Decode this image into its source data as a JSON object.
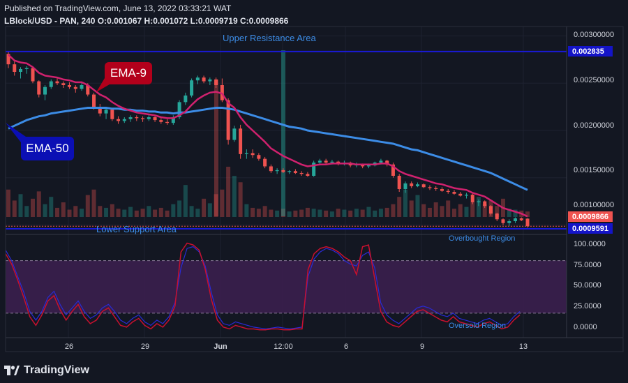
{
  "header": {
    "published": "Published on TradingView.com, June 13, 2022 03:33:21 WAT",
    "symbol_line": "LBlock/USD - PAN, 240 O:0.001067 H:0.001072 L:0.0009719 C:0.0009866"
  },
  "brand": {
    "name": "TradingView",
    "logo_icon": "tradingview-logo-icon"
  },
  "annotations": {
    "ema9_label": "EMA-9",
    "ema50_label": "EMA-50",
    "upper_zone": "Upper Resistance Area",
    "lower_zone": "Lower Support Area",
    "overbought": "Overbought Region",
    "oversold": "Oversold Region"
  },
  "price_tags": {
    "resistance": "0.002835",
    "last_close": "0.0009866",
    "support": "0.0009591"
  },
  "colors": {
    "background": "#131722",
    "bull": "#26a69a",
    "bear": "#ef5350",
    "ema9": "#d0216e",
    "ema50": "#3c8ce6",
    "level_line": "#1a1ad6",
    "osc_band": "#3b1f4e"
  },
  "chart_data": [
    {
      "type": "candlestick",
      "title": "LBlock/USD - PAN, 240",
      "y_ticks": [
        "0.00300000",
        "0.00250000",
        "0.00200000",
        "0.00150000",
        "0.00100000"
      ],
      "x_ticks": [
        "26",
        "29",
        "Jun",
        "12:00",
        "6",
        "9",
        "13"
      ],
      "ylim": [
        0.0009,
        0.0031
      ],
      "levels": {
        "upper_resistance": 0.002835,
        "lower_support": 0.0009591,
        "last_close": 0.0009866
      },
      "ohlc": [
        [
          0.00281,
          0.00283,
          0.00266,
          0.0027
        ],
        [
          0.0027,
          0.00273,
          0.00258,
          0.00262
        ],
        [
          0.00262,
          0.00267,
          0.00255,
          0.00265
        ],
        [
          0.00265,
          0.00268,
          0.0026,
          0.00266
        ],
        [
          0.00266,
          0.00267,
          0.0025,
          0.00252
        ],
        [
          0.00252,
          0.00253,
          0.00235,
          0.00238
        ],
        [
          0.00238,
          0.00248,
          0.00232,
          0.00246
        ],
        [
          0.00246,
          0.00254,
          0.00244,
          0.00252
        ],
        [
          0.00252,
          0.00255,
          0.00248,
          0.0025
        ],
        [
          0.0025,
          0.00252,
          0.00245,
          0.00248
        ],
        [
          0.00248,
          0.00251,
          0.00244,
          0.00246
        ],
        [
          0.00246,
          0.00248,
          0.0024,
          0.00244
        ],
        [
          0.00244,
          0.0025,
          0.00242,
          0.00248
        ],
        [
          0.00248,
          0.0025,
          0.00236,
          0.00238
        ],
        [
          0.00238,
          0.0024,
          0.00222,
          0.00225
        ],
        [
          0.00225,
          0.00228,
          0.00215,
          0.00218
        ],
        [
          0.00218,
          0.00225,
          0.00212,
          0.00222
        ],
        [
          0.00222,
          0.00224,
          0.0021,
          0.00212
        ],
        [
          0.00212,
          0.00215,
          0.00207,
          0.0021
        ],
        [
          0.0021,
          0.00214,
          0.00208,
          0.00212
        ],
        [
          0.00212,
          0.00216,
          0.00209,
          0.00214
        ],
        [
          0.00214,
          0.00216,
          0.0021,
          0.00213
        ],
        [
          0.00213,
          0.00215,
          0.00209,
          0.00212
        ],
        [
          0.00212,
          0.00216,
          0.0021,
          0.00214
        ],
        [
          0.00214,
          0.00215,
          0.00209,
          0.00211
        ],
        [
          0.00211,
          0.00213,
          0.00207,
          0.00209
        ],
        [
          0.00209,
          0.00212,
          0.00206,
          0.00208
        ],
        [
          0.00208,
          0.00216,
          0.00206,
          0.00214
        ],
        [
          0.00214,
          0.00232,
          0.00212,
          0.0023
        ],
        [
          0.0023,
          0.0024,
          0.00227,
          0.00237
        ],
        [
          0.00237,
          0.00255,
          0.00235,
          0.00253
        ],
        [
          0.00253,
          0.00258,
          0.00249,
          0.00256
        ],
        [
          0.00256,
          0.00258,
          0.0025,
          0.00252
        ],
        [
          0.00252,
          0.00256,
          0.00248,
          0.00254
        ],
        [
          0.00254,
          0.00256,
          0.00245,
          0.00248
        ],
        [
          0.00248,
          0.00255,
          0.0023,
          0.00232
        ],
        [
          0.00232,
          0.00234,
          0.00185,
          0.0019
        ],
        [
          0.0019,
          0.00205,
          0.00188,
          0.00202
        ],
        [
          0.00202,
          0.00206,
          0.0017,
          0.00175
        ],
        [
          0.00175,
          0.0018,
          0.0017,
          0.00176
        ],
        [
          0.00176,
          0.0018,
          0.00171,
          0.00174
        ],
        [
          0.00174,
          0.00176,
          0.00168,
          0.0017
        ],
        [
          0.0017,
          0.00172,
          0.0016,
          0.00162
        ],
        [
          0.00162,
          0.00164,
          0.00155,
          0.00157
        ],
        [
          0.00157,
          0.0016,
          0.00154,
          0.00158
        ],
        [
          0.00158,
          0.0016,
          0.00155,
          0.00156
        ],
        [
          0.00156,
          0.00158,
          0.00154,
          0.00157
        ],
        [
          0.00157,
          0.00159,
          0.00154,
          0.00155
        ],
        [
          0.00155,
          0.00157,
          0.00152,
          0.00154
        ],
        [
          0.00154,
          0.00156,
          0.00151,
          0.00152
        ],
        [
          0.00152,
          0.00168,
          0.00151,
          0.00166
        ],
        [
          0.00166,
          0.0017,
          0.00163,
          0.00168
        ],
        [
          0.00168,
          0.0017,
          0.00164,
          0.00166
        ],
        [
          0.00166,
          0.00169,
          0.00164,
          0.00167
        ],
        [
          0.00167,
          0.00168,
          0.00163,
          0.00165
        ],
        [
          0.00165,
          0.00168,
          0.00163,
          0.00166
        ],
        [
          0.00166,
          0.00167,
          0.00161,
          0.00163
        ],
        [
          0.00163,
          0.00166,
          0.00161,
          0.00164
        ],
        [
          0.00164,
          0.00165,
          0.0016,
          0.00162
        ],
        [
          0.00162,
          0.00165,
          0.0016,
          0.00163
        ],
        [
          0.00163,
          0.00167,
          0.00162,
          0.00166
        ],
        [
          0.00166,
          0.0017,
          0.00164,
          0.00168
        ],
        [
          0.00168,
          0.00169,
          0.00162,
          0.00164
        ],
        [
          0.00164,
          0.00166,
          0.0015,
          0.00152
        ],
        [
          0.00152,
          0.00154,
          0.00135,
          0.00138
        ],
        [
          0.00138,
          0.00146,
          0.00134,
          0.00144
        ],
        [
          0.00144,
          0.00146,
          0.00139,
          0.00141
        ],
        [
          0.00141,
          0.00145,
          0.0014,
          0.00143
        ],
        [
          0.00143,
          0.00144,
          0.00139,
          0.0014
        ],
        [
          0.0014,
          0.00142,
          0.00137,
          0.00139
        ],
        [
          0.00139,
          0.00141,
          0.00136,
          0.00138
        ],
        [
          0.00138,
          0.0014,
          0.00135,
          0.00136
        ],
        [
          0.00136,
          0.00138,
          0.00133,
          0.00135
        ],
        [
          0.00135,
          0.00137,
          0.00132,
          0.00133
        ],
        [
          0.00133,
          0.00135,
          0.0013,
          0.00131
        ],
        [
          0.00131,
          0.00134,
          0.00128,
          0.00132
        ],
        [
          0.00132,
          0.00133,
          0.00122,
          0.00124
        ],
        [
          0.00124,
          0.00127,
          0.0012,
          0.00125
        ],
        [
          0.00125,
          0.00126,
          0.00118,
          0.0012
        ],
        [
          0.0012,
          0.00121,
          0.0011,
          0.00112
        ],
        [
          0.00112,
          0.00113,
          0.00104,
          0.00106
        ],
        [
          0.00106,
          0.00107,
          0.001,
          0.00102
        ],
        [
          0.00102,
          0.00106,
          0.00099,
          0.00104
        ],
        [
          0.00104,
          0.00108,
          0.00102,
          0.00107
        ],
        [
          0.00107,
          0.00108,
          0.00104,
          0.00105
        ],
        [
          0.001067,
          0.001072,
          0.0009719,
          0.0009866
        ]
      ],
      "volume": [
        30,
        18,
        25,
        12,
        20,
        28,
        14,
        22,
        10,
        16,
        8,
        12,
        9,
        24,
        30,
        12,
        10,
        14,
        9,
        8,
        11,
        7,
        9,
        12,
        8,
        10,
        7,
        14,
        18,
        35,
        12,
        9,
        20,
        15,
        25,
        30,
        55,
        45,
        38,
        14,
        10,
        9,
        12,
        8,
        7,
        9,
        6,
        7,
        8,
        10,
        9,
        8,
        7,
        6,
        9,
        8,
        7,
        9,
        8,
        11,
        7,
        9,
        10,
        14,
        22,
        30,
        18,
        24,
        14,
        10,
        16,
        12,
        18,
        9,
        14,
        11,
        16,
        22,
        14,
        18,
        12,
        20,
        9,
        8,
        7,
        6
      ],
      "ema9": [
        0.0028,
        0.00274,
        0.00272,
        0.00271,
        0.00267,
        0.00261,
        0.00258,
        0.00257,
        0.00256,
        0.00254,
        0.00253,
        0.00251,
        0.00251,
        0.00248,
        0.00243,
        0.00238,
        0.00235,
        0.0023,
        0.00226,
        0.00223,
        0.00221,
        0.00219,
        0.00218,
        0.00217,
        0.00216,
        0.00214,
        0.00213,
        0.00213,
        0.00216,
        0.0022,
        0.00227,
        0.00233,
        0.00237,
        0.0024,
        0.00241,
        0.00239,
        0.00229,
        0.00224,
        0.00214,
        0.00206,
        0.002,
        0.00194,
        0.00188,
        0.00181,
        0.00177,
        0.00173,
        0.0017,
        0.00167,
        0.00164,
        0.00162,
        0.00163,
        0.00164,
        0.00164,
        0.00165,
        0.00165,
        0.00165,
        0.00165,
        0.00164,
        0.00164,
        0.00164,
        0.00164,
        0.00165,
        0.00165,
        0.00162,
        0.00157,
        0.00154,
        0.00152,
        0.0015,
        0.00148,
        0.00146,
        0.00144,
        0.00143,
        0.00141,
        0.00139,
        0.00138,
        0.00137,
        0.00134,
        0.00132,
        0.0013,
        0.00126,
        0.00122,
        0.00118,
        0.00116,
        0.00114,
        0.00112,
        0.00109
      ],
      "ema50": [
        0.00202,
        0.00205,
        0.00208,
        0.00211,
        0.00213,
        0.00215,
        0.00216,
        0.00218,
        0.00219,
        0.0022,
        0.00221,
        0.00222,
        0.00223,
        0.00224,
        0.00224,
        0.00224,
        0.00224,
        0.00223,
        0.00223,
        0.00222,
        0.00222,
        0.00221,
        0.00221,
        0.0022,
        0.0022,
        0.00219,
        0.00219,
        0.00218,
        0.00219,
        0.00219,
        0.0022,
        0.00221,
        0.00222,
        0.00223,
        0.00224,
        0.00224,
        0.00223,
        0.00222,
        0.0022,
        0.00218,
        0.00216,
        0.00214,
        0.00212,
        0.0021,
        0.00208,
        0.00206,
        0.00204,
        0.00203,
        0.00202,
        0.002,
        0.00199,
        0.00198,
        0.00197,
        0.00196,
        0.00195,
        0.00194,
        0.00193,
        0.00192,
        0.00191,
        0.0019,
        0.00189,
        0.00188,
        0.00187,
        0.00186,
        0.00184,
        0.00182,
        0.0018,
        0.00179,
        0.00177,
        0.00175,
        0.00173,
        0.00171,
        0.00169,
        0.00167,
        0.00165,
        0.00163,
        0.00161,
        0.00159,
        0.00157,
        0.00155,
        0.00152,
        0.00149,
        0.00146,
        0.00143,
        0.0014,
        0.00137
      ]
    },
    {
      "type": "line",
      "y_ticks": [
        "100.0000",
        "75.0000",
        "50.0000",
        "25.0000",
        "0.0000"
      ],
      "ylim": [
        -8,
        110
      ],
      "band": [
        20,
        80
      ],
      "series": [
        {
          "values": [
            92,
            80,
            62,
            44,
            22,
            12,
            22,
            38,
            45,
            30,
            18,
            26,
            34,
            22,
            14,
            18,
            26,
            30,
            22,
            12,
            8,
            14,
            18,
            10,
            6,
            12,
            8,
            16,
            32,
            72,
            94,
            96,
            90,
            74,
            44,
            18,
            8,
            6,
            10,
            8,
            6,
            4,
            3,
            2,
            3,
            4,
            3,
            2,
            3,
            4,
            62,
            82,
            90,
            94,
            92,
            88,
            80,
            76,
            74,
            86,
            90,
            72,
            32,
            18,
            12,
            8,
            14,
            20,
            26,
            28,
            26,
            22,
            18,
            16,
            20,
            14,
            12,
            10,
            8,
            12,
            14,
            10,
            6,
            8,
            16,
            22
          ]
        },
        {
          "values": [
            88,
            76,
            58,
            38,
            16,
            6,
            18,
            34,
            40,
            24,
            12,
            22,
            30,
            16,
            8,
            12,
            22,
            26,
            16,
            6,
            4,
            10,
            14,
            6,
            2,
            8,
            4,
            12,
            28,
            90,
            100,
            98,
            92,
            70,
            36,
            12,
            4,
            2,
            6,
            4,
            2,
            2,
            1,
            1,
            2,
            2,
            1,
            1,
            2,
            2,
            70,
            88,
            94,
            96,
            94,
            90,
            84,
            80,
            64,
            96,
            98,
            60,
            22,
            10,
            6,
            4,
            10,
            16,
            22,
            24,
            20,
            16,
            12,
            10,
            16,
            10,
            8,
            6,
            4,
            8,
            10,
            6,
            2,
            4,
            12,
            18
          ]
        }
      ]
    }
  ]
}
